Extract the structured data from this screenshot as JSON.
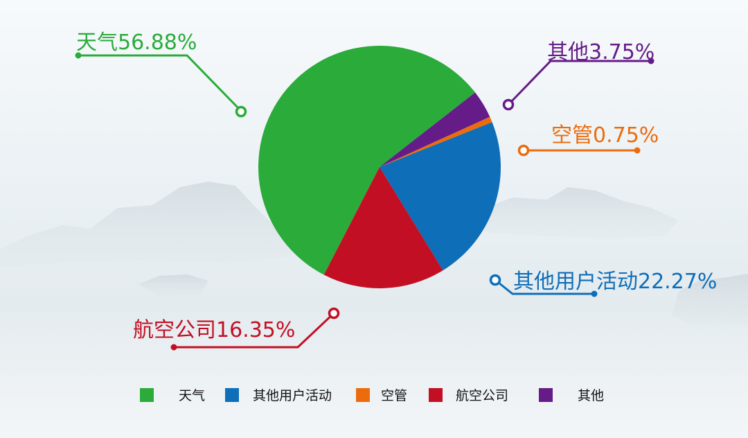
{
  "chart_data": {
    "type": "pie",
    "slices": [
      {
        "name": "天气",
        "value": 56.88,
        "color": "#2AAB3A",
        "label": "天气56.88%"
      },
      {
        "name": "其他",
        "value": 3.75,
        "color": "#651C88",
        "label": "其他3.75%"
      },
      {
        "name": "空管",
        "value": 0.75,
        "color": "#EC6C0C",
        "label": "空管0.75%"
      },
      {
        "name": "其他用户活动",
        "value": 22.27,
        "color": "#0E6EB8",
        "label": "其他用户活动22.27%"
      },
      {
        "name": "航空公司",
        "value": 16.35,
        "color": "#C30F23",
        "label": "航空公司16.35%"
      }
    ],
    "legend": {
      "position": "bottom",
      "entries": [
        {
          "name": "天气",
          "color": "#2AAB3A"
        },
        {
          "name": "其他用户活动",
          "color": "#0E6EB8"
        },
        {
          "name": "空管",
          "color": "#EC6C0C"
        },
        {
          "name": "航空公司",
          "color": "#C30F23"
        },
        {
          "name": "其他",
          "color": "#651C88"
        }
      ]
    }
  }
}
